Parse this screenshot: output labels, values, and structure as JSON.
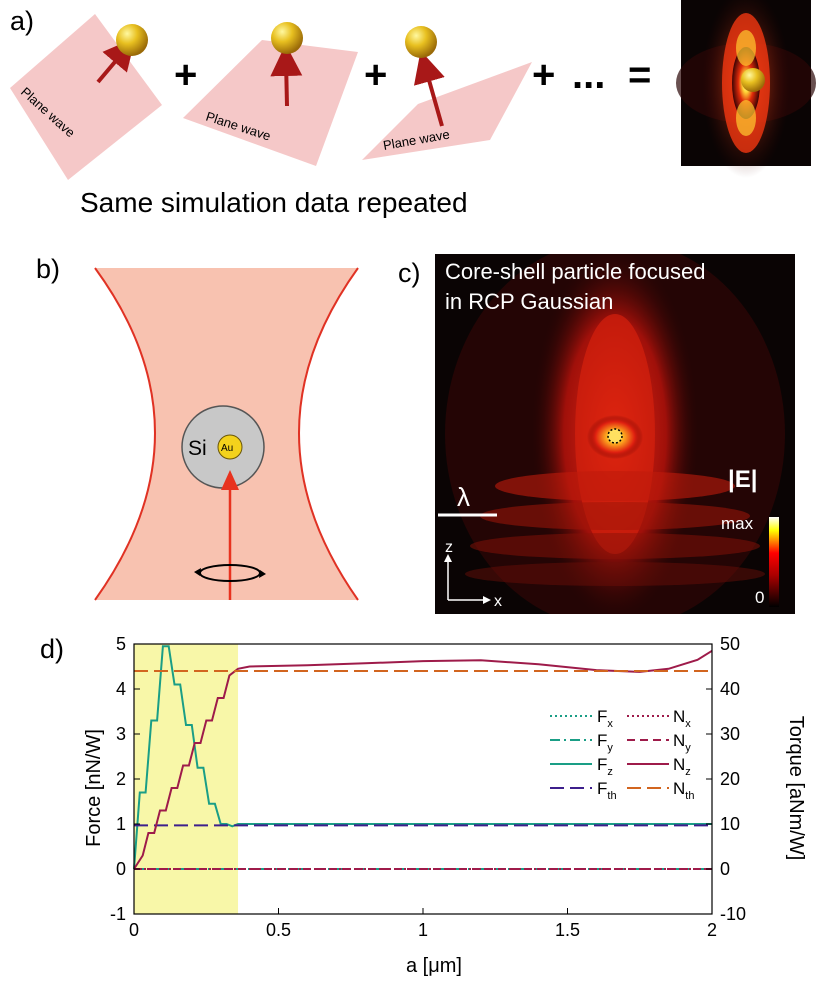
{
  "panel_a": {
    "label": "a)",
    "plane_wave_label": "Plane wave",
    "ops": [
      "+",
      "+",
      "+",
      "...",
      "="
    ],
    "caption": "Same simulation data repeated"
  },
  "panel_b": {
    "label": "b)",
    "shell_material": "Si",
    "core_material": "Au"
  },
  "panel_c": {
    "label": "c)",
    "title_line1": "Core-shell particle focused",
    "title_line2": "in RCP Gaussian",
    "field_label": "|E|",
    "scale_label": "λ",
    "colorbar_max": "max",
    "colorbar_min": "0",
    "axis_z": "z",
    "axis_x": "x"
  },
  "panel_d": {
    "label": "d)"
  },
  "chart_data": {
    "type": "line",
    "xlabel": "a [μm]",
    "ylabel_left": "Force [nN/W]",
    "ylabel_right": "Torque [aNm/W]",
    "xlim": [
      0,
      2
    ],
    "ylim_left": [
      -1,
      5
    ],
    "ylim_right": [
      -10,
      50
    ],
    "x_ticks": [
      "0",
      "0.5",
      "1",
      "1.5",
      "2"
    ],
    "left_ticks": [
      "-1",
      "0",
      "1",
      "2",
      "3",
      "4",
      "5"
    ],
    "right_ticks": [
      "-10",
      "0",
      "10",
      "20",
      "30",
      "40",
      "50"
    ],
    "highlight_region": [
      0,
      0.36
    ],
    "grid": false,
    "legend_position": "right-center",
    "series": [
      {
        "name": "F_x",
        "label_main": "F",
        "label_sub": "x",
        "axis": "left",
        "color": "#1a9e86",
        "dash": "2,3",
        "x": [
          0,
          2
        ],
        "y": [
          0,
          0
        ]
      },
      {
        "name": "F_y",
        "label_main": "F",
        "label_sub": "y",
        "axis": "left",
        "color": "#1a9e86",
        "dash": "10,4,2,4",
        "x": [
          0,
          2
        ],
        "y": [
          0,
          0
        ]
      },
      {
        "name": "F_z",
        "label_main": "F",
        "label_sub": "z",
        "axis": "left",
        "color": "#1a9e86",
        "dash": "",
        "x": [
          0,
          0.02,
          0.04,
          0.06,
          0.08,
          0.1,
          0.12,
          0.14,
          0.16,
          0.18,
          0.2,
          0.22,
          0.24,
          0.26,
          0.28,
          0.3,
          0.32,
          0.34,
          0.36,
          0.4,
          0.6,
          0.8,
          1.0,
          1.2,
          1.4,
          1.6,
          1.8,
          2.0
        ],
        "y": [
          0,
          1.7,
          1.7,
          3.3,
          3.3,
          4.95,
          4.95,
          4.1,
          4.1,
          3.2,
          3.2,
          2.25,
          2.25,
          1.45,
          1.45,
          1.0,
          1.0,
          0.95,
          1.0,
          1.0,
          1.0,
          1.0,
          1.0,
          1.0,
          1.0,
          1.0,
          1.0,
          1.0
        ]
      },
      {
        "name": "F_th",
        "label_main": "F",
        "label_sub": "th",
        "axis": "left",
        "color": "#3d1f8c",
        "dash": "14,6",
        "x": [
          0,
          2
        ],
        "y": [
          0.97,
          0.97
        ]
      },
      {
        "name": "N_x",
        "label_main": "N",
        "label_sub": "x",
        "axis": "right",
        "color": "#9e1b4a",
        "dash": "2,3",
        "x": [
          0,
          2
        ],
        "y": [
          0,
          0
        ]
      },
      {
        "name": "N_y",
        "label_main": "N",
        "label_sub": "y",
        "axis": "right",
        "color": "#9e1b4a",
        "dash": "8,5",
        "x": [
          0,
          2
        ],
        "y": [
          0,
          0
        ]
      },
      {
        "name": "N_z",
        "label_main": "N",
        "label_sub": "z",
        "axis": "right",
        "color": "#9e1b4a",
        "dash": "",
        "x": [
          0,
          0.03,
          0.05,
          0.07,
          0.09,
          0.11,
          0.13,
          0.15,
          0.17,
          0.19,
          0.21,
          0.23,
          0.25,
          0.27,
          0.29,
          0.31,
          0.33,
          0.36,
          0.4,
          0.6,
          0.8,
          1.0,
          1.2,
          1.4,
          1.6,
          1.75,
          1.85,
          1.95,
          2.0
        ],
        "y": [
          0,
          3,
          8,
          8,
          13,
          13,
          18,
          18,
          23,
          23,
          28,
          28,
          33,
          33,
          38,
          38,
          43,
          44.5,
          45,
          45.3,
          45.7,
          46.2,
          46.4,
          45.5,
          44.2,
          43.8,
          44.5,
          46.5,
          48.5
        ]
      },
      {
        "name": "N_th",
        "label_main": "N",
        "label_sub": "th",
        "axis": "right",
        "color": "#d2651f",
        "dash": "14,6",
        "x": [
          0,
          2
        ],
        "y": [
          44,
          44
        ]
      }
    ]
  },
  "colors": {
    "beam_fill": "#f8c2b0",
    "beam_edge": "#e03224",
    "plane_fill": "#f5c8c8",
    "arrow": "#a81818",
    "highlight": "#f8f7a8",
    "field_dark": "#0a0404"
  }
}
